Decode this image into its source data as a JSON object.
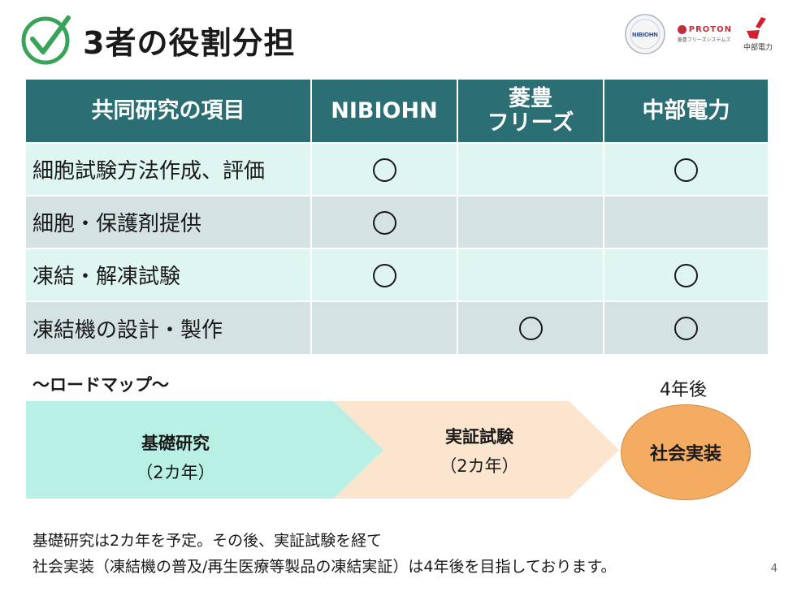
{
  "header": {
    "title": "3者の役割分担",
    "logos": {
      "nibiohn": "NIBIOHN",
      "proton_name": "PROTON",
      "proton_sub": "菱豊フリーズシステムズ",
      "chubu": "中部電力"
    }
  },
  "table": {
    "headers": [
      "共同研究の項目",
      "NIBIOHN",
      "菱豊\nフリーズ",
      "中部電力"
    ],
    "rows": [
      {
        "item": "細胞試験方法作成、評価",
        "marks": [
          true,
          false,
          true
        ]
      },
      {
        "item": "細胞・保護剤提供",
        "marks": [
          true,
          false,
          false
        ]
      },
      {
        "item": "凍結・解凍試験",
        "marks": [
          true,
          false,
          true
        ]
      },
      {
        "item": "凍結機の設計・製作",
        "marks": [
          false,
          true,
          true
        ]
      }
    ]
  },
  "roadmap": {
    "label": "～ロードマップ～",
    "step1": {
      "title": "基礎研究",
      "duration": "（2カ年）"
    },
    "step2": {
      "title": "実証試験",
      "duration": "（2カ年）"
    },
    "goal_timing": "4年後",
    "goal": "社会実装"
  },
  "summary": {
    "line1": "基礎研究は2カ年を予定。その後、実証試験を経て",
    "line2": "社会実装（凍結機の普及/再生医療等製品の凍結実証）は4年後を目指しております。"
  },
  "page_number": "4",
  "colors": {
    "header_teal": "#2b6e73",
    "row_light": "#dff5f2",
    "row_dark": "#d4e2e4",
    "check_green": "#3aa35a",
    "arrow1": "#b9f0e6",
    "arrow2": "#fce5cf",
    "goal": "#f4ab62"
  }
}
